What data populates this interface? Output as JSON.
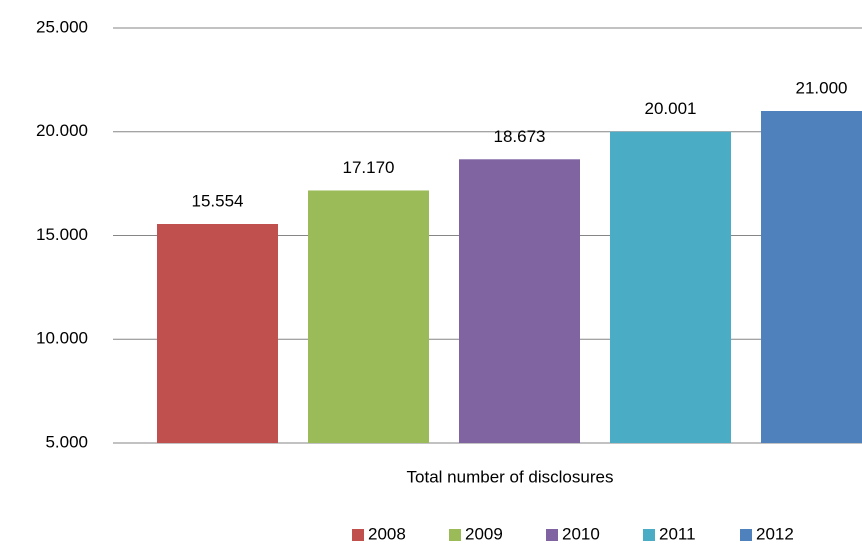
{
  "chart_data": {
    "type": "bar",
    "categories": [
      "Total number of disclosures"
    ],
    "series": [
      {
        "name": "2008",
        "color": "#c0504d",
        "values": [
          15554
        ],
        "value_labels": [
          "15.554"
        ]
      },
      {
        "name": "2009",
        "color": "#9bbb59",
        "values": [
          17170
        ],
        "value_labels": [
          "17.170"
        ]
      },
      {
        "name": "2010",
        "color": "#8064a2",
        "values": [
          18673
        ],
        "value_labels": [
          "18.673"
        ]
      },
      {
        "name": "2011",
        "color": "#4bacc6",
        "values": [
          20001
        ],
        "value_labels": [
          "20.001"
        ]
      },
      {
        "name": "2012",
        "color": "#4f81bd",
        "values": [
          21000
        ],
        "value_labels": [
          "21.000"
        ]
      }
    ],
    "ylim": [
      5000,
      25000
    ],
    "yticks": [
      {
        "value": 5000,
        "label": "5.000"
      },
      {
        "value": 10000,
        "label": "10.000"
      },
      {
        "value": 15000,
        "label": "15.000"
      },
      {
        "value": 20000,
        "label": "20.000"
      },
      {
        "value": 25000,
        "label": "25.000"
      }
    ],
    "grid": true,
    "legend": "bottom"
  }
}
